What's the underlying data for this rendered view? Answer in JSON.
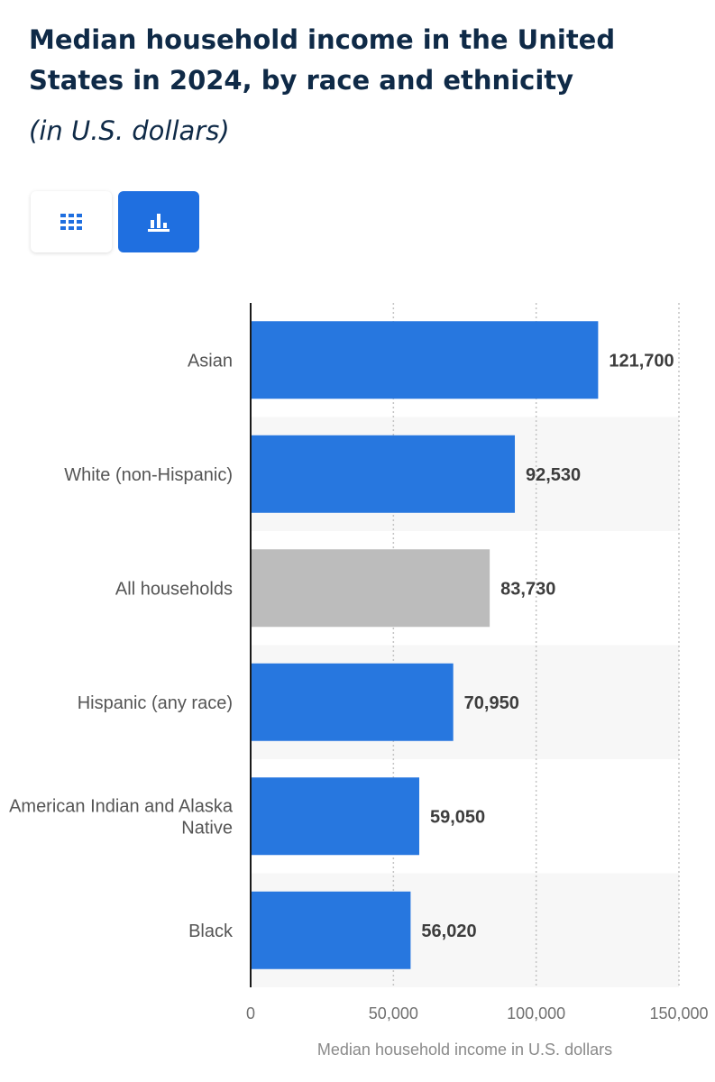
{
  "header": {
    "title": "Median household income in the United States in 2024, by race and ethnicity",
    "subtitle": "(in U.S. dollars)"
  },
  "view_toggle": {
    "table_icon": "table-grid-icon",
    "chart_icon": "bar-chart-icon",
    "active": "chart"
  },
  "colors": {
    "bar": "#2777df",
    "highlight_bar": "#bcbcbc",
    "active_button": "#1f6fe0",
    "band": "#f7f7f7"
  },
  "chart_data": {
    "type": "bar",
    "orientation": "horizontal",
    "categories": [
      "Asian",
      "White (non-Hispanic)",
      "All households",
      "Hispanic (any race)",
      "American Indian and Alaska Native",
      "Black"
    ],
    "values": [
      121700,
      92530,
      83730,
      70950,
      59050,
      56020
    ],
    "value_labels": [
      "121,700",
      "92,530",
      "83,730",
      "70,950",
      "59,050",
      "56,020"
    ],
    "highlighted_category": "All households",
    "xlabel": "Median household income in U.S. dollars",
    "ylabel": "",
    "xlim": [
      0,
      150000
    ],
    "xticks": [
      0,
      50000,
      100000,
      150000
    ],
    "xtick_labels": [
      "0",
      "50,000",
      "100,000",
      "150,000"
    ],
    "grid": "vertical dotted",
    "legend": "none"
  }
}
